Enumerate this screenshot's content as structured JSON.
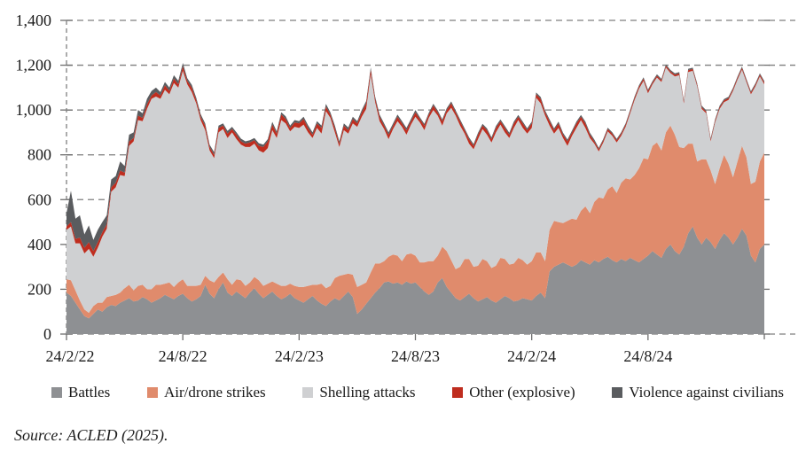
{
  "figure": {
    "source_note": "Source: ACLED (2025)."
  },
  "chart_data": {
    "type": "area",
    "stacked": true,
    "title": "",
    "xlabel": "",
    "ylabel": "",
    "grid": "dashed horizontal gridlines",
    "legend_position": "bottom",
    "x_axis": {
      "tick_labels": [
        "24/2/22",
        "24/8/22",
        "24/2/23",
        "24/8/23",
        "24/2/24",
        "24/8/24"
      ],
      "tick_week_indices": [
        0,
        26,
        52,
        78,
        104,
        130
      ],
      "points_are": "weekly event counts from 24/2/22 to early 2025",
      "n_points": 157
    },
    "y_axis": {
      "min": 0,
      "max": 1400,
      "step": 200,
      "tick_labels": [
        "0",
        "200",
        "400",
        "600",
        "800",
        "1,000",
        "1,200",
        "1,400"
      ]
    },
    "series": [
      {
        "name": "Battles",
        "color": "#8e9093",
        "values": [
          185,
          170,
          140,
          110,
          80,
          70,
          90,
          110,
          100,
          120,
          130,
          125,
          140,
          150,
          160,
          145,
          150,
          165,
          155,
          140,
          150,
          160,
          175,
          165,
          155,
          170,
          180,
          160,
          145,
          155,
          170,
          220,
          180,
          160,
          200,
          230,
          185,
          170,
          190,
          175,
          160,
          185,
          205,
          180,
          160,
          175,
          190,
          170,
          155,
          165,
          180,
          160,
          150,
          140,
          155,
          170,
          150,
          135,
          125,
          145,
          160,
          150,
          170,
          190,
          165,
          90,
          110,
          135,
          160,
          185,
          205,
          230,
          235,
          225,
          230,
          220,
          235,
          225,
          230,
          210,
          190,
          175,
          190,
          230,
          250,
          210,
          185,
          160,
          150,
          165,
          180,
          160,
          145,
          155,
          165,
          150,
          140,
          155,
          170,
          160,
          145,
          150,
          160,
          155,
          150,
          170,
          185,
          160,
          280,
          300,
          310,
          320,
          310,
          300,
          310,
          330,
          320,
          310,
          330,
          320,
          335,
          345,
          330,
          320,
          335,
          325,
          340,
          330,
          320,
          335,
          350,
          370,
          355,
          340,
          380,
          400,
          370,
          355,
          390,
          450,
          480,
          430,
          400,
          430,
          410,
          380,
          420,
          450,
          430,
          400,
          430,
          470,
          440,
          350,
          320,
          380,
          400
        ]
      },
      {
        "name": "Air/drone strikes",
        "color": "#e08b6c",
        "values": [
          60,
          70,
          55,
          40,
          30,
          25,
          35,
          30,
          40,
          45,
          40,
          50,
          45,
          55,
          60,
          50,
          65,
          55,
          45,
          60,
          70,
          60,
          50,
          65,
          55,
          60,
          65,
          55,
          70,
          60,
          50,
          40,
          60,
          70,
          55,
          45,
          60,
          50,
          55,
          65,
          55,
          45,
          50,
          60,
          55,
          50,
          45,
          55,
          60,
          50,
          45,
          55,
          60,
          70,
          60,
          50,
          70,
          90,
          80,
          70,
          90,
          110,
          95,
          80,
          100,
          120,
          110,
          95,
          115,
          130,
          110,
          95,
          110,
          130,
          120,
          105,
          120,
          135,
          120,
          110,
          130,
          150,
          135,
          120,
          140,
          160,
          145,
          130,
          150,
          170,
          155,
          140,
          160,
          180,
          160,
          145,
          165,
          185,
          165,
          150,
          170,
          190,
          170,
          155,
          175,
          195,
          180,
          165,
          185,
          205,
          190,
          175,
          195,
          215,
          200,
          220,
          250,
          230,
          260,
          290,
          270,
          300,
          330,
          310,
          340,
          370,
          350,
          380,
          420,
          450,
          430,
          470,
          500,
          480,
          520,
          530,
          520,
          480,
          440,
          400,
          370,
          340,
          380,
          350,
          320,
          290,
          320,
          350,
          330,
          300,
          340,
          370,
          350,
          320,
          360,
          390,
          410
        ]
      },
      {
        "name": "Shelling attacks",
        "color": "#cfd0d2",
        "values": [
          220,
          240,
          210,
          255,
          250,
          285,
          220,
          245,
          295,
          305,
          465,
          480,
          525,
          500,
          620,
          665,
          740,
          730,
          805,
          850,
          840,
          830,
          865,
          840,
          910,
          870,
          930,
          900,
          865,
          815,
          735,
          650,
          580,
          555,
          645,
          640,
          630,
          680,
          625,
          605,
          620,
          605,
          595,
          580,
          595,
          605,
          675,
          650,
          740,
          725,
          680,
          710,
          710,
          725,
          685,
          655,
          700,
          670,
          790,
          750,
          650,
          575,
          645,
          625,
          675,
          715,
          750,
          775,
          885,
          720,
          635,
          590,
          525,
          560,
          600,
          600,
          535,
          575,
          620,
          625,
          590,
          640,
          675,
          625,
          540,
          615,
          680,
          685,
          630,
          560,
          515,
          525,
          565,
          580,
          565,
          560,
          595,
          595,
          565,
          565,
          605,
          615,
          590,
          585,
          595,
          690,
          665,
          650,
          465,
          390,
          420,
          380,
          335,
          370,
          410,
          405,
          350,
          335,
          260,
          205,
          250,
          260,
          225,
          225,
          210,
          230,
          295,
          335,
          355,
          345,
          295,
          275,
          290,
          305,
          290,
          235,
          260,
          320,
          200,
          320,
          325,
          335,
          225,
          205,
          130,
          275,
          265,
          235,
          285,
          385,
          365,
          340,
          335,
          400,
          425,
          380,
          305
        ]
      },
      {
        "name": "Other (explosive)",
        "color": "#bf2d1f",
        "values": [
          15,
          20,
          20,
          25,
          25,
          30,
          25,
          25,
          20,
          20,
          20,
          20,
          20,
          15,
          20,
          15,
          20,
          15,
          20,
          15,
          20,
          15,
          20,
          15,
          20,
          15,
          20,
          15,
          20,
          15,
          15,
          20,
          15,
          15,
          20,
          15,
          20,
          15,
          20,
          15,
          15,
          20,
          15,
          20,
          25,
          30,
          25,
          20,
          25,
          20,
          15,
          20,
          20,
          25,
          20,
          15,
          20,
          25,
          20,
          15,
          20,
          15,
          20,
          15,
          20,
          15,
          20,
          25,
          20,
          15,
          20,
          15,
          20,
          15,
          20,
          15,
          20,
          15,
          20,
          15,
          20,
          15,
          20,
          15,
          20,
          15,
          20,
          15,
          20,
          15,
          20,
          15,
          20,
          15,
          20,
          15,
          20,
          15,
          20,
          15,
          20,
          15,
          20,
          15,
          20,
          15,
          20,
          15,
          20,
          15,
          20,
          15,
          20,
          15,
          20,
          15,
          20,
          15,
          10,
          10,
          10,
          10,
          10,
          10,
          10,
          10,
          10,
          10,
          10,
          10,
          10,
          8,
          8,
          8,
          8,
          8,
          8,
          8,
          8,
          8,
          8,
          8,
          8,
          8,
          8,
          8,
          8,
          8,
          8,
          8,
          8,
          8,
          8,
          8,
          8,
          8,
          8
        ]
      },
      {
        "name": "Violence against civilians",
        "color": "#5a5c5f",
        "values": [
          60,
          140,
          90,
          100,
          60,
          75,
          50,
          55,
          45,
          40,
          35,
          30,
          40,
          30,
          30,
          25,
          25,
          20,
          25,
          20,
          20,
          15,
          15,
          15,
          15,
          15,
          15,
          12,
          12,
          10,
          12,
          10,
          10,
          12,
          10,
          10,
          12,
          10,
          10,
          12,
          10,
          10,
          10,
          12,
          10,
          10,
          12,
          10,
          10,
          12,
          10,
          10,
          10,
          10,
          12,
          10,
          10,
          10,
          12,
          10,
          10,
          10,
          10,
          12,
          10,
          10,
          10,
          10,
          10,
          10,
          10,
          10,
          10,
          10,
          10,
          10,
          10,
          10,
          10,
          8,
          8,
          8,
          8,
          8,
          8,
          8,
          8,
          8,
          8,
          8,
          8,
          8,
          8,
          8,
          8,
          8,
          8,
          8,
          8,
          8,
          8,
          8,
          8,
          8,
          8,
          8,
          8,
          8,
          8,
          8,
          8,
          8,
          8,
          8,
          8,
          8,
          8,
          8,
          8,
          6,
          6,
          6,
          6,
          6,
          6,
          6,
          6,
          6,
          6,
          6,
          6,
          6,
          6,
          6,
          6,
          6,
          6,
          6,
          6,
          6,
          6,
          6,
          6,
          6,
          6,
          6,
          6,
          6,
          6,
          6,
          6,
          6,
          6,
          6,
          6,
          6,
          6
        ]
      }
    ],
    "style": {
      "gridline_color": "#7f7f7f",
      "tick_color": "#6e6e6e",
      "text_color": "#1a1a1a"
    }
  }
}
